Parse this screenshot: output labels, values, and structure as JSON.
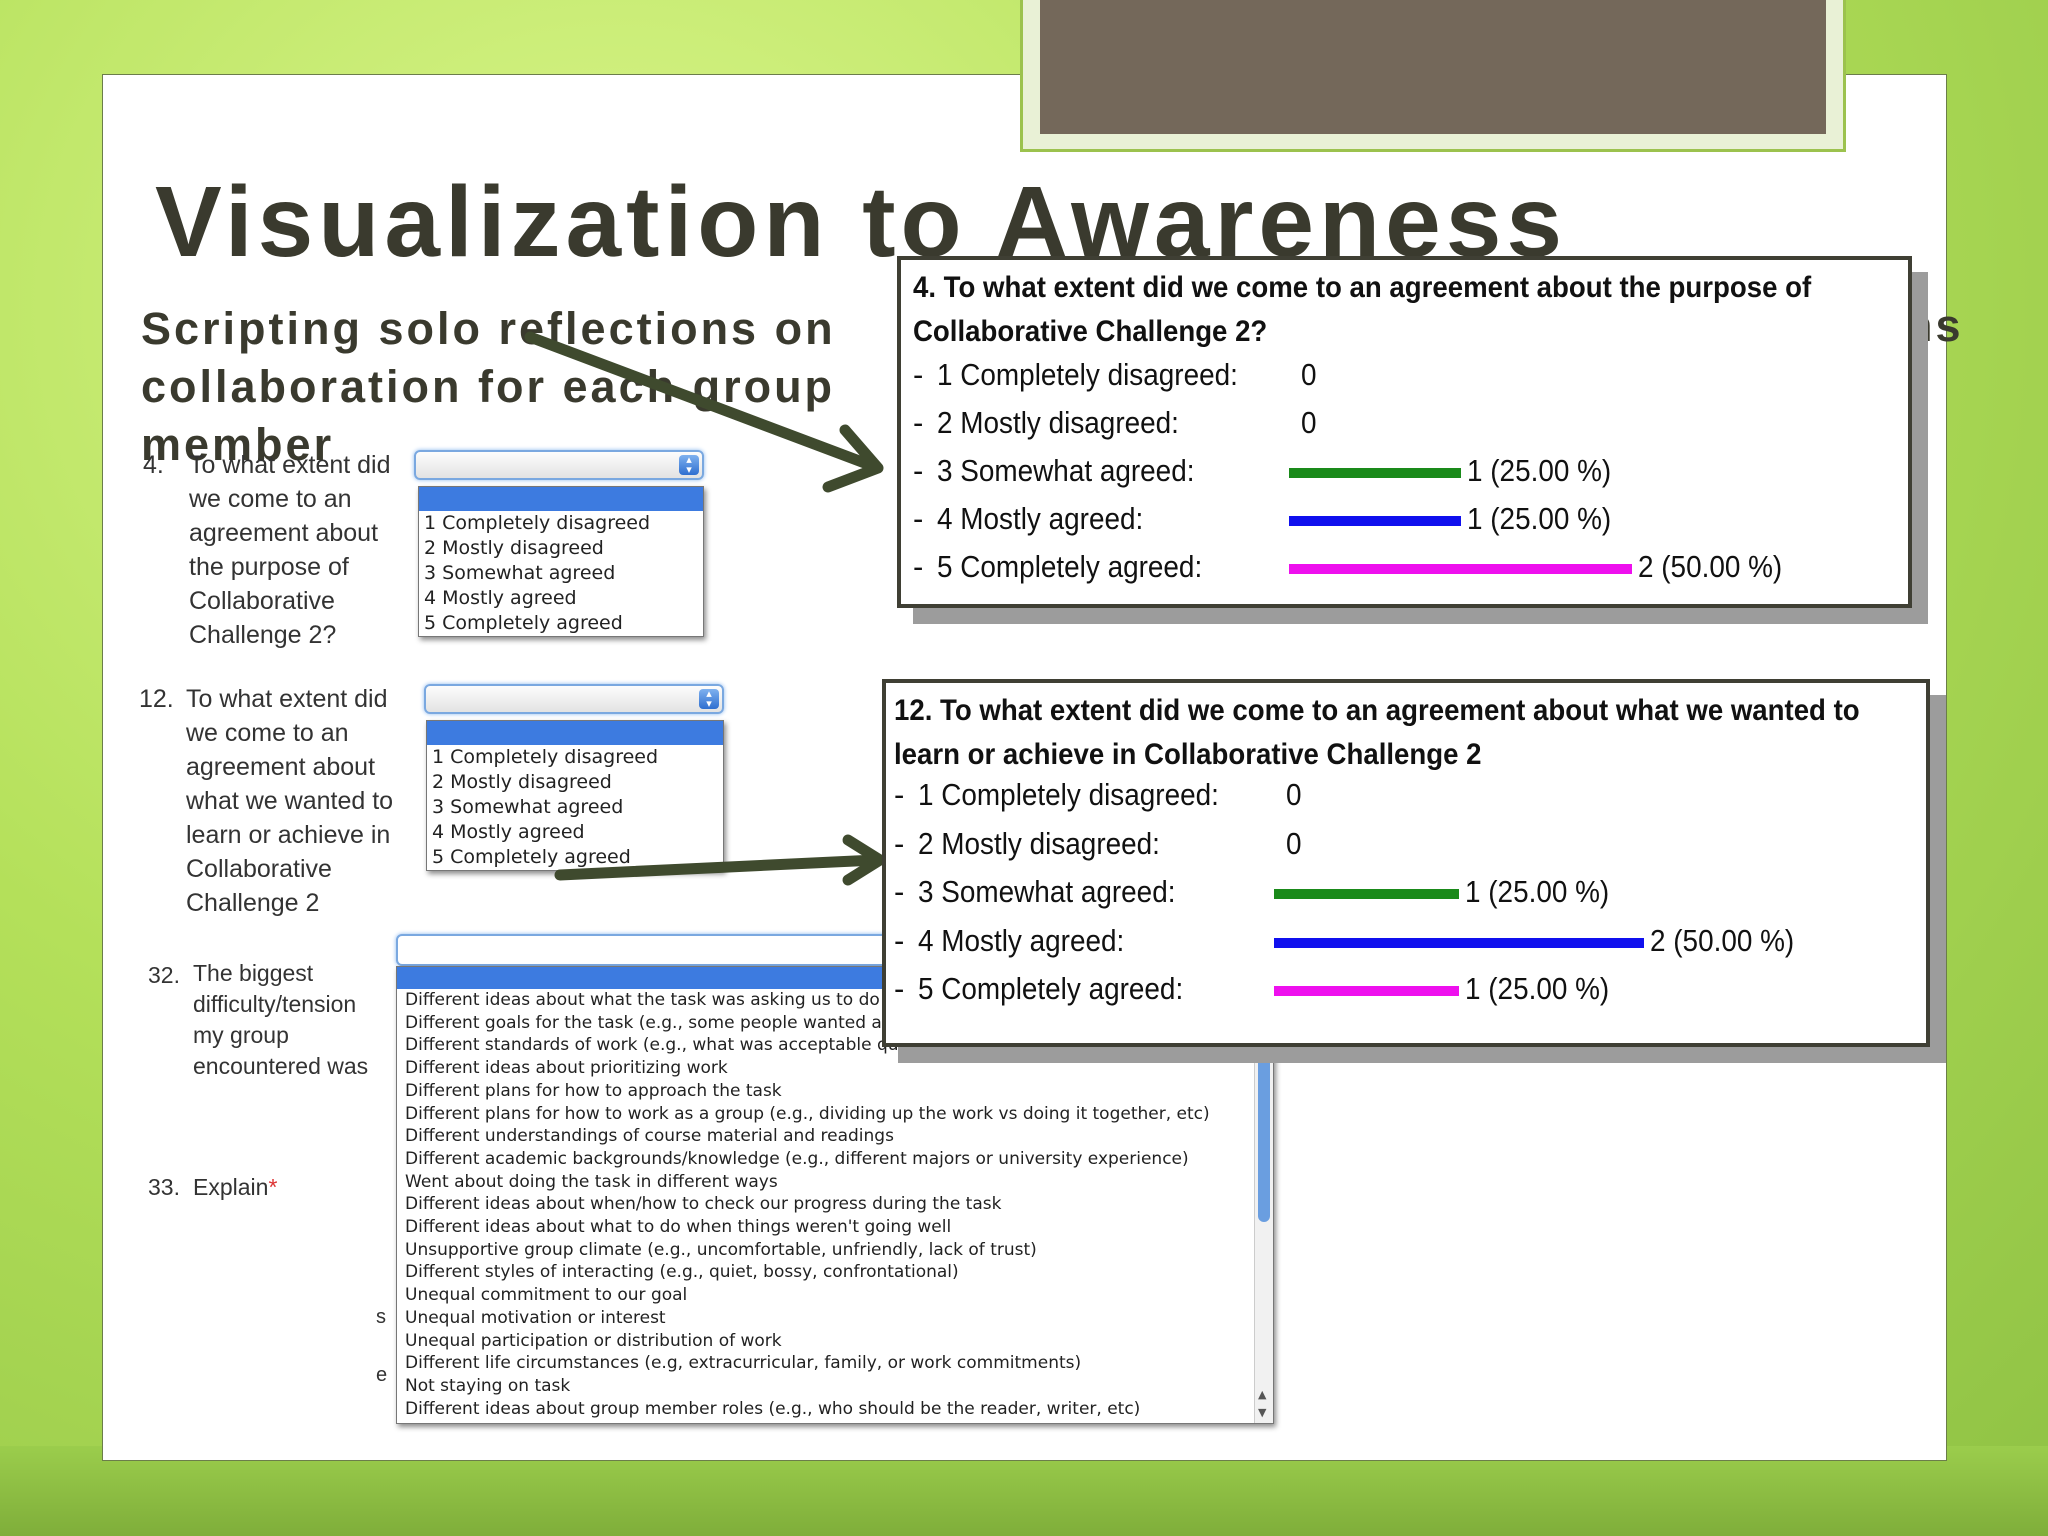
{
  "slide": {
    "title": "Visualization to Awareness",
    "subtitle": "Scripting solo reflections on collaboration for each group member",
    "subtitle_overflow": "ns",
    "accent_color": "#74685a",
    "background_color": "#b4e05a"
  },
  "form": {
    "q4": {
      "number": "4.",
      "text": "To what extent did we come to an agreement about the purpose of Collaborative Challenge 2?",
      "options": [
        "1 Completely disagreed",
        "2 Mostly disagreed",
        "3 Somewhat agreed",
        "4 Mostly agreed",
        "5 Completely agreed"
      ]
    },
    "q12": {
      "number": "12.",
      "text": "To what extent did we come to an agreement about what we wanted to learn or achieve in Collaborative Challenge 2",
      "options": [
        "1 Completely disagreed",
        "2 Mostly disagreed",
        "3 Somewhat agreed",
        "4 Mostly agreed",
        "5 Completely agreed"
      ]
    },
    "q32": {
      "number": "32.",
      "text": "The biggest difficulty/tension my group encountered was",
      "options": [
        "Different ideas about what the task was asking us to do",
        "Different goals for the task (e.g., some people wanted a",
        "Different standards of work (e.g., what was acceptable quality)",
        "Different ideas about prioritizing work",
        "Different plans for how to approach the task",
        "Different plans for how to work as a group (e.g., dividing up the work vs doing it together, etc)",
        "Different understandings of course material and readings",
        "Different academic backgrounds/knowledge (e.g., different majors or university experience)",
        "Went about doing the task in different ways",
        "Different ideas about when/how to check our progress during the task",
        "Different ideas about what to do when things weren't going well",
        "Unsupportive group climate (e.g., uncomfortable, unfriendly, lack of trust)",
        "Different styles of interacting (e.g., quiet, bossy, confrontational)",
        "Unequal commitment to our goal",
        "Unequal motivation or interest",
        "Unequal participation or distribution of work",
        "Different life circumstances (e.g, extracurricular, family, or work commitments)",
        "Not staying on task",
        "Different ideas about group member roles (e.g., who should be the reader, writer, etc)"
      ]
    },
    "q33": {
      "number": "33.",
      "text": "Explain",
      "required_mark": "*"
    },
    "stray_letters": [
      "s",
      "e"
    ]
  },
  "results": [
    {
      "title": "4. To what extent did we come to an agreement about the purpose of Collaborative Challenge 2?",
      "rows": [
        {
          "dash": "-",
          "label": "1 Completely disagreed:",
          "count": "0",
          "value": 0,
          "color": "#1a8a1a"
        },
        {
          "dash": "-",
          "label": "2 Mostly disagreed:",
          "count": "0",
          "value": 0,
          "color": "#1a8a1a"
        },
        {
          "dash": "-",
          "label": "3 Somewhat agreed:",
          "count": "1 (25.00 %)",
          "value": 25,
          "color": "#1a8a1a"
        },
        {
          "dash": "-",
          "label": "4 Mostly agreed:",
          "count": "1 (25.00 %)",
          "value": 25,
          "color": "#1010ee"
        },
        {
          "dash": "-",
          "label": "5 Completely agreed:",
          "count": "2 (50.00 %)",
          "value": 50,
          "color": "#ee10ee"
        }
      ]
    },
    {
      "title": "12. To what extent did we come to an agreement about what we wanted to learn or achieve in Collaborative Challenge 2",
      "rows": [
        {
          "dash": "-",
          "label": "1 Completely disagreed:",
          "count": "0",
          "value": 0,
          "color": "#1a8a1a"
        },
        {
          "dash": "-",
          "label": "2 Mostly disagreed:",
          "count": "0",
          "value": 0,
          "color": "#1a8a1a"
        },
        {
          "dash": "-",
          "label": "3 Somewhat agreed:",
          "count": "1 (25.00 %)",
          "value": 25,
          "color": "#1a8a1a"
        },
        {
          "dash": "-",
          "label": "4 Mostly agreed:",
          "count": "2 (50.00 %)",
          "value": 50,
          "color": "#1010ee"
        },
        {
          "dash": "-",
          "label": "5 Completely agreed:",
          "count": "1 (25.00 %)",
          "value": 25,
          "color": "#ee10ee"
        }
      ]
    }
  ]
}
